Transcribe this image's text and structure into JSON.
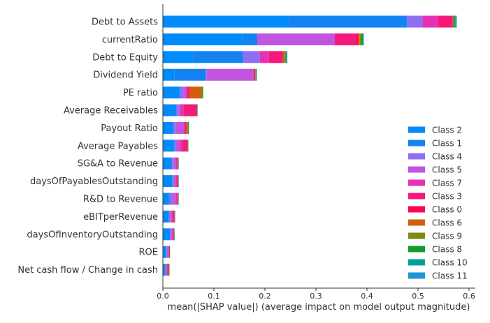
{
  "chart_data": {
    "type": "bar",
    "orientation": "horizontal",
    "stacked": true,
    "xlabel": "mean(|SHAP value|) (average impact on model output magnitude)",
    "xlim": [
      0,
      0.61
    ],
    "xticks": [
      0,
      0.1,
      0.2,
      0.3,
      0.4,
      0.5,
      0.6
    ],
    "tick_labels": [
      "0.0",
      "0.1",
      "0.2",
      "0.3",
      "0.4",
      "0.5",
      "0.6"
    ],
    "grid": false,
    "legend_position": "lower-right",
    "categories": [
      "Debt to Assets",
      "currentRatio",
      "Debt to Equity",
      "Dividend Yield",
      "PE ratio",
      "Average Receivables",
      "Payout Ratio",
      "Average Payables",
      "SG&A to Revenue",
      "daysOfPayablesOutstanding",
      "R&D to Revenue",
      "eBITperRevenue",
      "daysOfInventoryOutstanding",
      "ROE",
      "Net cash flow / Change in cash"
    ],
    "series": [
      {
        "name": "Class 2",
        "color": "#008bfb",
        "values": [
          0.247,
          0.155,
          0.06,
          0.023,
          0.032,
          0.024,
          0.02,
          0.022,
          0.016,
          0.018,
          0.012,
          0.011,
          0.013,
          0.006,
          0.004
        ]
      },
      {
        "name": "Class 1",
        "color": "#1383f1",
        "values": [
          0.231,
          0.03,
          0.097,
          0.061,
          0.002,
          0.003,
          0.001,
          0.001,
          0.002,
          0.001,
          0.001,
          0.001,
          0.001,
          0.001,
          0.001
        ]
      },
      {
        "name": "Class 4",
        "color": "#8f6ff1",
        "values": [
          0.031,
          0.0,
          0.033,
          0.002,
          0.007,
          0.004,
          0.004,
          0.003,
          0.003,
          0.003,
          0.007,
          0.002,
          0.002,
          0.001,
          0.001
        ]
      },
      {
        "name": "Class 5",
        "color": "#c155e0",
        "values": [
          0.0,
          0.152,
          0.0,
          0.092,
          0.004,
          0.004,
          0.017,
          0.007,
          0.004,
          0.003,
          0.005,
          0.003,
          0.002,
          0.002,
          0.001
        ]
      },
      {
        "name": "Class 7",
        "color": "#e531b3",
        "values": [
          0.029,
          0.0,
          0.018,
          0.0,
          0.003,
          0.006,
          0.0,
          0.005,
          0.004,
          0.003,
          0.004,
          0.003,
          0.003,
          0.002,
          0.002
        ]
      },
      {
        "name": "Class 3",
        "color": "#f5197b",
        "values": [
          0.03,
          0.042,
          0.027,
          0.002,
          0.004,
          0.026,
          0.004,
          0.011,
          0.001,
          0.002,
          0.001,
          0.003,
          0.001,
          0.001,
          0.003
        ]
      },
      {
        "name": "Class 0",
        "color": "#ff0052",
        "values": [
          0.0,
          0.004,
          0.0,
          0.001,
          0.0,
          0.0,
          0.0,
          0.0,
          0.0,
          0.0,
          0.0,
          0.0,
          0.0,
          0.0,
          0.0
        ]
      },
      {
        "name": "Class 6",
        "color": "#d35f0e",
        "values": [
          0.0,
          0.003,
          0.003,
          0.0,
          0.024,
          0.0,
          0.003,
          0.0,
          0.0,
          0.0,
          0.0,
          0.0,
          0.0,
          0.0,
          0.0
        ]
      },
      {
        "name": "Class 9",
        "color": "#7d8b0e",
        "values": [
          0.003,
          0.003,
          0.002,
          0.001,
          0.001,
          0.0,
          0.0,
          0.0,
          0.0,
          0.0,
          0.0,
          0.0,
          0.0,
          0.0,
          0.0
        ]
      },
      {
        "name": "Class 8",
        "color": "#159a2e",
        "values": [
          0.002,
          0.003,
          0.002,
          0.002,
          0.002,
          0.001,
          0.002,
          0.001,
          0.001,
          0.001,
          0.001,
          0.001,
          0.001,
          0.001,
          0.001
        ]
      },
      {
        "name": "Class 10",
        "color": "#00a19a",
        "values": [
          0.002,
          0.001,
          0.001,
          0.0,
          0.0,
          0.0,
          0.0,
          0.0,
          0.0,
          0.0,
          0.0,
          0.0,
          0.0,
          0.0,
          0.0
        ]
      },
      {
        "name": "Class 11",
        "color": "#1c95d4",
        "values": [
          0.001,
          0.001,
          0.001,
          0.0,
          0.0,
          0.0,
          0.0,
          0.0,
          0.0,
          0.0,
          0.0,
          0.0,
          0.0,
          0.0,
          0.0
        ]
      }
    ]
  }
}
